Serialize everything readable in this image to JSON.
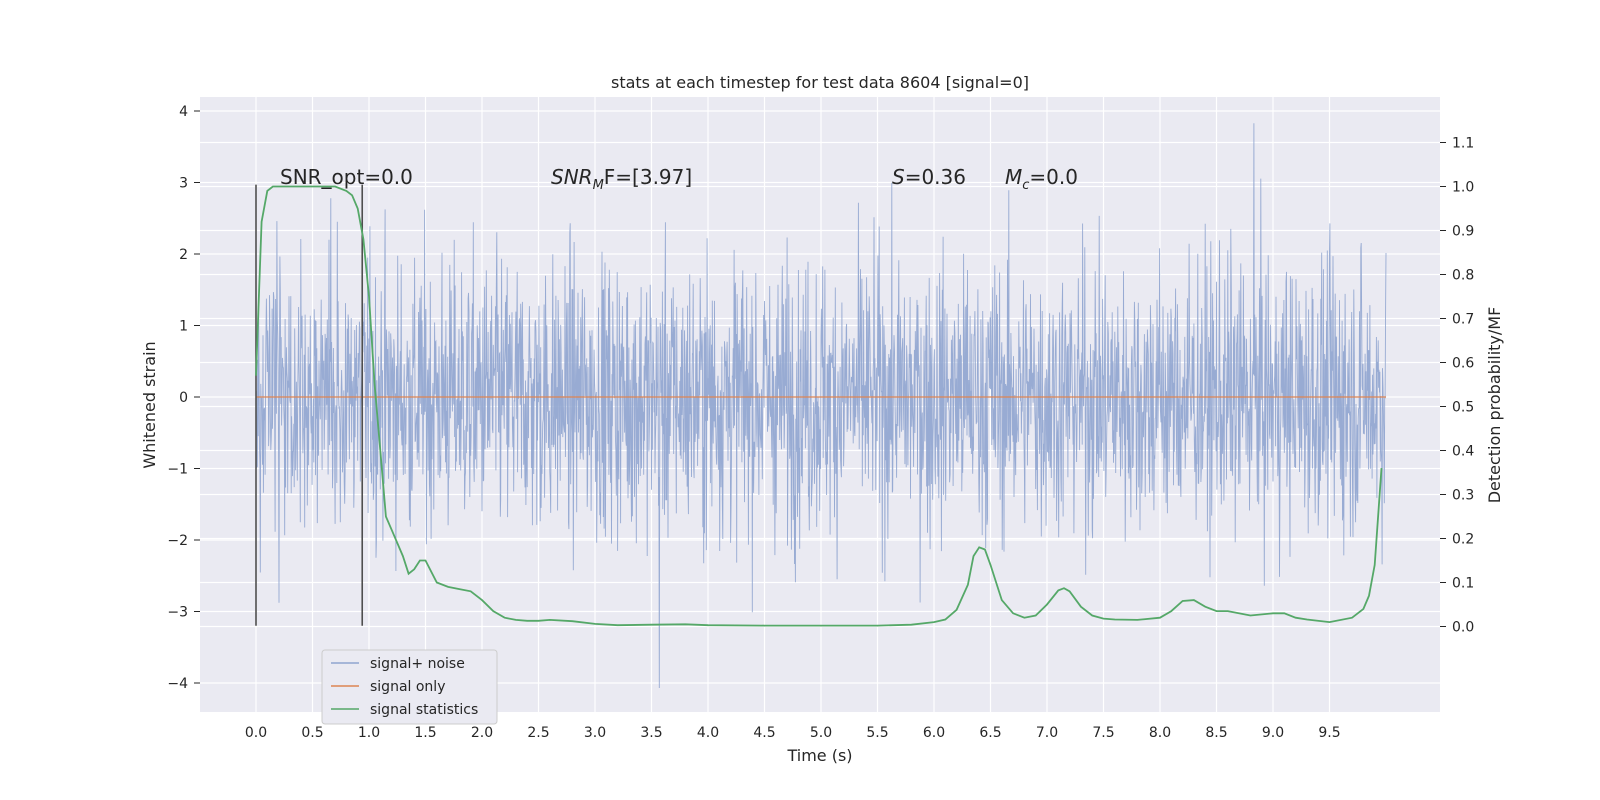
{
  "chart_data": {
    "type": "line",
    "title": "stats at each timestep for test data 8604 [signal=0]",
    "xlabel": "Time (s)",
    "ylabel": "Whitened strain",
    "y2label": "Detection probability/MF",
    "xlim": [
      -0.5,
      10.5
    ],
    "ylim": [
      -4.4,
      4.2
    ],
    "y2lim": [
      -0.2,
      1.2
    ],
    "x_ticks": [
      "0.0",
      "0.5",
      "1.0",
      "1.5",
      "2.0",
      "2.5",
      "3.0",
      "3.5",
      "4.0",
      "4.5",
      "5.0",
      "5.5",
      "6.0",
      "6.5",
      "7.0",
      "7.5",
      "8.0",
      "8.5",
      "9.0",
      "9.5"
    ],
    "y_ticks": [
      "4",
      "3",
      "2",
      "1",
      "0",
      "−1",
      "−2",
      "−3",
      "−4"
    ],
    "y2_ticks": [
      "1.1",
      "1.0",
      "0.9",
      "0.8",
      "0.7",
      "0.6",
      "0.5",
      "0.4",
      "0.3",
      "0.2",
      "0.1",
      "0.0"
    ],
    "grid": true,
    "legend_position": "lower-left",
    "annotations": {
      "snr_opt": "SNR_opt=0.0",
      "snr_mf_main": "SNR",
      "snr_mf_sub": "M",
      "snr_mf_rest": "F=[3.97]",
      "s_main": "S",
      "s_rest": "=0.36",
      "mc_main": "M",
      "mc_sub": "c",
      "mc_rest": "=0.0"
    },
    "vertical_lines_x": [
      0.0,
      0.94
    ],
    "series": [
      {
        "name": "signal+ noise",
        "color": "#8fa4cf",
        "x_range": [
          0.0,
          10.0
        ],
        "core_amplitude": 1.7,
        "max_value": 3.83,
        "min_value": -4.07
      },
      {
        "name": "signal only",
        "color": "#dd8452",
        "x": [
          0.0,
          10.0
        ],
        "y": [
          0.0,
          0.0
        ]
      },
      {
        "name": "signal statistics",
        "color": "#55a868",
        "axis": "right",
        "x": [
          0.0,
          0.05,
          0.1,
          0.15,
          0.2,
          0.25,
          0.3,
          0.4,
          0.5,
          0.6,
          0.7,
          0.8,
          0.85,
          0.9,
          0.95,
          1.0,
          1.05,
          1.1,
          1.15,
          1.2,
          1.3,
          1.35,
          1.4,
          1.45,
          1.5,
          1.6,
          1.7,
          1.8,
          1.9,
          2.0,
          2.1,
          2.2,
          2.3,
          2.4,
          2.5,
          2.6,
          2.8,
          3.0,
          3.2,
          3.5,
          3.8,
          4.0,
          4.5,
          5.0,
          5.5,
          5.8,
          6.0,
          6.1,
          6.2,
          6.3,
          6.35,
          6.4,
          6.45,
          6.5,
          6.6,
          6.7,
          6.8,
          6.9,
          7.0,
          7.1,
          7.15,
          7.2,
          7.3,
          7.4,
          7.5,
          7.6,
          7.8,
          8.0,
          8.1,
          8.2,
          8.3,
          8.4,
          8.5,
          8.6,
          8.8,
          9.0,
          9.1,
          9.2,
          9.3,
          9.5,
          9.7,
          9.8,
          9.85,
          9.9,
          9.93,
          9.96
        ],
        "y": [
          0.57,
          0.92,
          0.99,
          1.0,
          1.0,
          1.0,
          1.0,
          1.0,
          1.0,
          1.0,
          1.0,
          0.99,
          0.98,
          0.95,
          0.88,
          0.75,
          0.55,
          0.4,
          0.25,
          0.22,
          0.16,
          0.12,
          0.13,
          0.15,
          0.15,
          0.1,
          0.09,
          0.085,
          0.08,
          0.06,
          0.035,
          0.02,
          0.015,
          0.013,
          0.013,
          0.015,
          0.012,
          0.006,
          0.003,
          0.004,
          0.005,
          0.003,
          0.002,
          0.002,
          0.002,
          0.004,
          0.01,
          0.016,
          0.038,
          0.095,
          0.16,
          0.18,
          0.175,
          0.14,
          0.06,
          0.03,
          0.02,
          0.025,
          0.05,
          0.082,
          0.087,
          0.08,
          0.045,
          0.025,
          0.018,
          0.016,
          0.015,
          0.02,
          0.035,
          0.058,
          0.06,
          0.045,
          0.035,
          0.035,
          0.025,
          0.03,
          0.03,
          0.02,
          0.016,
          0.01,
          0.02,
          0.04,
          0.07,
          0.14,
          0.25,
          0.36
        ]
      }
    ]
  }
}
